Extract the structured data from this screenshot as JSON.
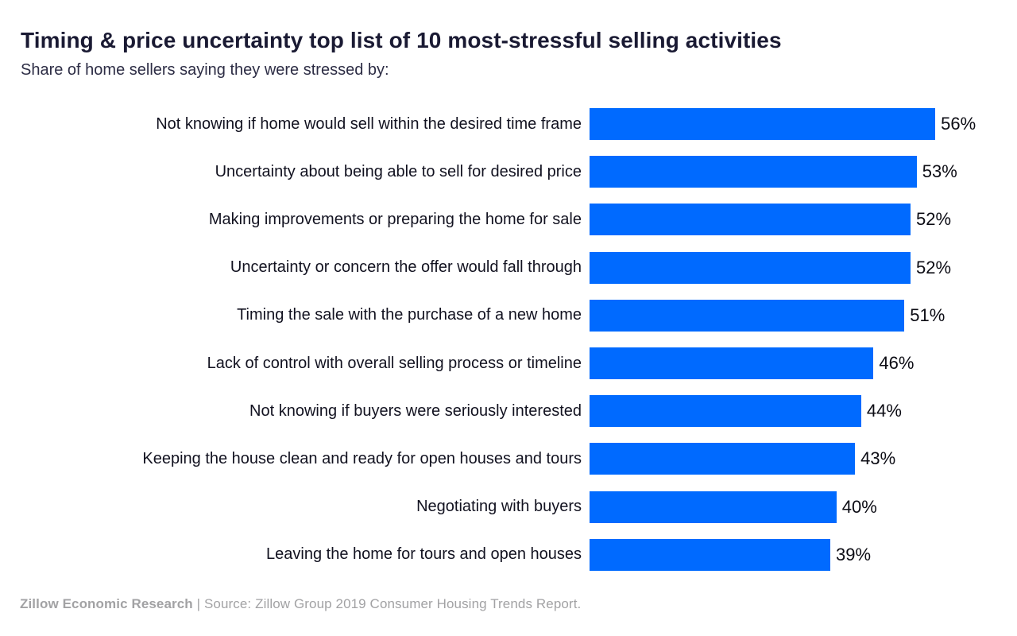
{
  "chart_data": {
    "type": "bar",
    "orientation": "horizontal",
    "title": "Timing & price uncertainty top list of 10 most-stressful selling activities",
    "subtitle": "Share of home sellers saying they were stressed by:",
    "categories": [
      "Not knowing if home would sell within the desired time frame",
      "Uncertainty about being able to sell for desired price",
      "Making improvements or preparing the home for sale",
      "Uncertainty or concern the offer would fall through",
      "Timing the sale with the purchase of a new home",
      "Lack of control with overall selling process or timeline",
      "Not knowing if buyers were seriously interested",
      "Keeping the house clean and ready for open houses and tours",
      "Negotiating with buyers",
      "Leaving the home for tours and open houses"
    ],
    "values": [
      56,
      53,
      52,
      52,
      51,
      46,
      44,
      43,
      40,
      39
    ],
    "value_labels": [
      "56%",
      "53%",
      "52%",
      "52%",
      "51%",
      "46%",
      "44%",
      "43%",
      "40%",
      "39%"
    ],
    "value_suffix": "%",
    "xlim": [
      0,
      60
    ],
    "grid": false,
    "legend": false,
    "data_labels_position": "outside-end",
    "bar_color": "#006AFF",
    "label_color": "#121220",
    "title_color": "#1a1a33"
  },
  "footer": {
    "brand": "Zillow Economic Research",
    "separator": " | ",
    "source": "Source: Zillow Group 2019 Consumer Housing Trends Report."
  }
}
